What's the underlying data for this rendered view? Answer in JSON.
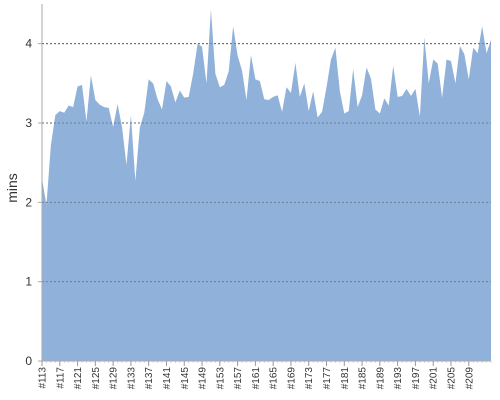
{
  "chart_data": {
    "type": "area",
    "title": "",
    "xlabel": "",
    "ylabel": "mins",
    "ylim": [
      0,
      4.5
    ],
    "yticks": [
      0,
      1,
      2,
      3,
      4
    ],
    "grid": "horizontal dashed",
    "legend": "none",
    "area_color": "#8fb1da",
    "x_start_label_number": 113,
    "x_label_step": 4,
    "x_labels": [
      "#113",
      "#117",
      "#121",
      "#125",
      "#129",
      "#133",
      "#137",
      "#141",
      "#145",
      "#149",
      "#153",
      "#157",
      "#161",
      "#165",
      "#169",
      "#173",
      "#177",
      "#181",
      "#185",
      "#189",
      "#193",
      "#197",
      "#201",
      "#205",
      "#209"
    ],
    "series": [
      {
        "values": [
          2.3,
          1.97,
          2.72,
          3.1,
          3.15,
          3.13,
          3.22,
          3.2,
          3.46,
          3.48,
          3.02,
          3.6,
          3.29,
          3.23,
          3.2,
          3.19,
          2.95,
          3.24,
          2.95,
          2.47,
          3.1,
          2.27,
          2.94,
          3.13,
          3.55,
          3.5,
          3.3,
          3.17,
          3.53,
          3.46,
          3.26,
          3.41,
          3.32,
          3.33,
          3.62,
          4.0,
          3.96,
          3.5,
          4.43,
          3.62,
          3.45,
          3.48,
          3.65,
          4.22,
          3.85,
          3.66,
          3.29,
          3.86,
          3.55,
          3.53,
          3.3,
          3.29,
          3.33,
          3.35,
          3.14,
          3.45,
          3.38,
          3.76,
          3.33,
          3.5,
          3.15,
          3.4,
          3.07,
          3.14,
          3.45,
          3.8,
          3.95,
          3.4,
          3.12,
          3.15,
          3.68,
          3.2,
          3.35,
          3.7,
          3.56,
          3.17,
          3.12,
          3.31,
          3.22,
          3.72,
          3.33,
          3.34,
          3.43,
          3.34,
          3.43,
          3.08,
          4.08,
          3.5,
          3.8,
          3.75,
          3.32,
          3.8,
          3.78,
          3.5,
          3.97,
          3.87,
          3.55,
          3.95,
          3.88,
          4.22,
          3.88,
          4.05
        ]
      }
    ]
  }
}
